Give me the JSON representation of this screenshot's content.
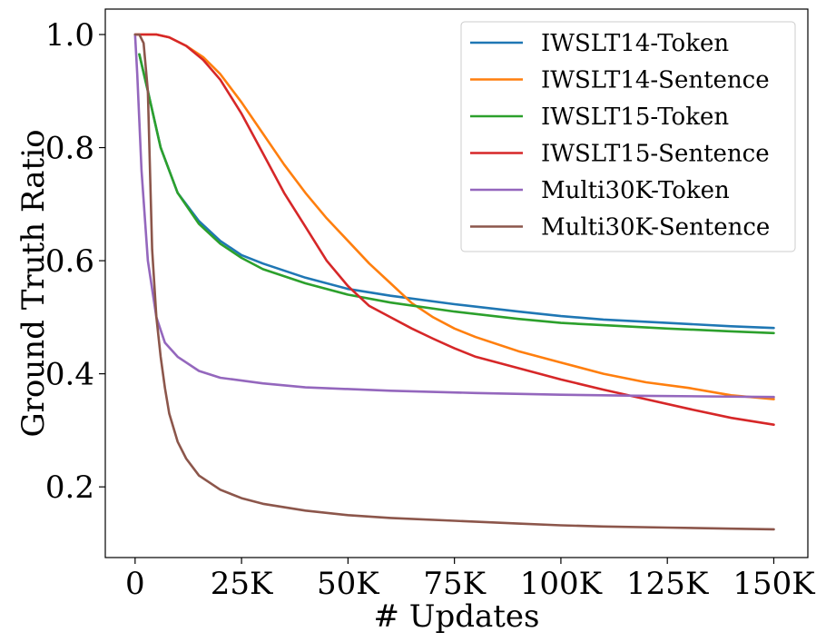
{
  "chart_data": {
    "type": "line",
    "xlabel": "# Updates",
    "ylabel": "Ground Truth Ratio",
    "xlim": [
      -7000,
      158000
    ],
    "ylim": [
      0.075,
      1.045
    ],
    "x_ticks": [
      0,
      25000,
      50000,
      75000,
      100000,
      125000,
      150000
    ],
    "x_tick_labels": [
      "0",
      "25K",
      "50K",
      "75K",
      "100K",
      "125K",
      "150K"
    ],
    "y_ticks": [
      0.2,
      0.4,
      0.6,
      0.8,
      1.0
    ],
    "y_tick_labels": [
      "0.2",
      "0.4",
      "0.6",
      "0.8",
      "1.0"
    ],
    "grid": false,
    "legend_position": "top-right",
    "series": [
      {
        "name": "IWSLT14-Token",
        "color": "#1f77b4",
        "x": [
          1000,
          3000,
          6000,
          10000,
          15000,
          20000,
          25000,
          30000,
          40000,
          50000,
          60000,
          75000,
          90000,
          100000,
          110000,
          125000,
          140000,
          150000
        ],
        "y": [
          0.965,
          0.9,
          0.8,
          0.72,
          0.67,
          0.635,
          0.61,
          0.595,
          0.57,
          0.55,
          0.538,
          0.523,
          0.51,
          0.502,
          0.496,
          0.49,
          0.484,
          0.481
        ]
      },
      {
        "name": "IWSLT14-Sentence",
        "color": "#ff7f0e",
        "x": [
          0,
          2000,
          5000,
          8000,
          12000,
          16000,
          20000,
          25000,
          30000,
          35000,
          40000,
          45000,
          50000,
          55000,
          60000,
          65000,
          70000,
          75000,
          80000,
          90000,
          100000,
          110000,
          120000,
          130000,
          140000,
          150000
        ],
        "y": [
          1.0,
          1.0,
          1.0,
          0.995,
          0.98,
          0.96,
          0.93,
          0.88,
          0.825,
          0.77,
          0.72,
          0.675,
          0.635,
          0.595,
          0.56,
          0.525,
          0.5,
          0.48,
          0.465,
          0.44,
          0.42,
          0.4,
          0.385,
          0.375,
          0.362,
          0.355
        ]
      },
      {
        "name": "IWSLT15-Token",
        "color": "#2ca02c",
        "x": [
          1000,
          3000,
          6000,
          10000,
          15000,
          20000,
          25000,
          30000,
          40000,
          50000,
          60000,
          75000,
          90000,
          100000,
          110000,
          125000,
          140000,
          150000
        ],
        "y": [
          0.965,
          0.9,
          0.8,
          0.72,
          0.665,
          0.63,
          0.605,
          0.585,
          0.56,
          0.54,
          0.526,
          0.51,
          0.497,
          0.49,
          0.486,
          0.48,
          0.475,
          0.472
        ]
      },
      {
        "name": "IWSLT15-Sentence",
        "color": "#d62728",
        "x": [
          0,
          2000,
          5000,
          8000,
          12000,
          16000,
          20000,
          25000,
          30000,
          35000,
          40000,
          45000,
          50000,
          55000,
          60000,
          65000,
          70000,
          75000,
          80000,
          90000,
          100000,
          110000,
          120000,
          130000,
          140000,
          150000
        ],
        "y": [
          1.0,
          1.0,
          1.0,
          0.995,
          0.98,
          0.955,
          0.92,
          0.86,
          0.79,
          0.72,
          0.66,
          0.6,
          0.555,
          0.52,
          0.5,
          0.48,
          0.462,
          0.445,
          0.43,
          0.41,
          0.39,
          0.372,
          0.355,
          0.338,
          0.322,
          0.31
        ]
      },
      {
        "name": "Multi30K-Token",
        "color": "#9467bd",
        "x": [
          0,
          500,
          1500,
          3000,
          5000,
          7000,
          10000,
          15000,
          20000,
          30000,
          40000,
          60000,
          80000,
          100000,
          120000,
          150000
        ],
        "y": [
          1.0,
          0.93,
          0.76,
          0.6,
          0.5,
          0.455,
          0.43,
          0.405,
          0.393,
          0.383,
          0.376,
          0.37,
          0.366,
          0.363,
          0.361,
          0.359
        ]
      },
      {
        "name": "Multi30K-Sentence",
        "color": "#8c564b",
        "x": [
          0,
          1000,
          2000,
          3000,
          4000,
          5000,
          6000,
          7000,
          8000,
          10000,
          12000,
          15000,
          20000,
          25000,
          30000,
          40000,
          50000,
          60000,
          75000,
          90000,
          100000,
          110000,
          125000,
          140000,
          150000
        ],
        "y": [
          1.0,
          1.0,
          0.985,
          0.9,
          0.62,
          0.5,
          0.43,
          0.375,
          0.33,
          0.28,
          0.25,
          0.22,
          0.195,
          0.18,
          0.17,
          0.158,
          0.15,
          0.145,
          0.14,
          0.135,
          0.132,
          0.13,
          0.128,
          0.126,
          0.125
        ]
      }
    ]
  }
}
